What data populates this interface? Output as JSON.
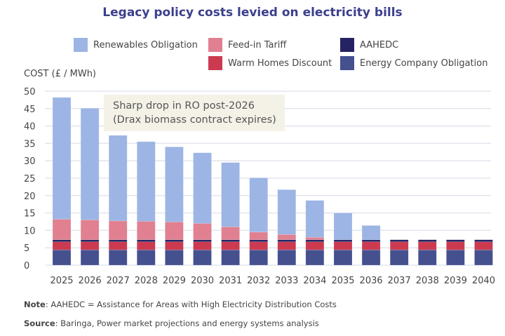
{
  "chart_data": {
    "type": "bar",
    "stacked": true,
    "title": "Legacy policy costs levied on electricity bills",
    "ylabel": "COST (£ / MWh)",
    "xlabel": "",
    "ylim": [
      0,
      50
    ],
    "yticks": [
      0,
      5,
      10,
      15,
      20,
      25,
      30,
      35,
      40,
      45,
      50
    ],
    "grid": true,
    "categories": [
      "2025",
      "2026",
      "2027",
      "2028",
      "2029",
      "2030",
      "2031",
      "2032",
      "2033",
      "2034",
      "2035",
      "2036",
      "2037",
      "2038",
      "2039",
      "2040"
    ],
    "series": [
      {
        "name": "Energy Company Obligation",
        "color": "#45508f",
        "values": [
          4.4,
          4.4,
          4.4,
          4.4,
          4.4,
          4.4,
          4.4,
          4.4,
          4.4,
          4.4,
          4.4,
          4.4,
          4.4,
          4.4,
          4.4,
          4.4
        ]
      },
      {
        "name": "Warm Homes Discount",
        "color": "#cc3a50",
        "values": [
          2.3,
          2.3,
          2.3,
          2.3,
          2.3,
          2.3,
          2.3,
          2.3,
          2.3,
          2.3,
          2.3,
          2.3,
          2.3,
          2.3,
          2.3,
          2.3
        ]
      },
      {
        "name": "AAHEDC",
        "color": "#252363",
        "values": [
          0.6,
          0.6,
          0.6,
          0.6,
          0.6,
          0.6,
          0.6,
          0.6,
          0.6,
          0.6,
          0.6,
          0.6,
          0.6,
          0.6,
          0.6,
          0.6
        ]
      },
      {
        "name": "Feed-in Tariff",
        "color": "#e08090",
        "values": [
          5.9,
          5.7,
          5.4,
          5.3,
          5.1,
          4.7,
          3.7,
          2.2,
          1.5,
          0.7,
          0,
          0,
          0,
          0,
          0,
          0
        ]
      },
      {
        "name": "Renewables Obligation",
        "color": "#9db5e4",
        "values": [
          35.0,
          32.1,
          24.6,
          22.9,
          21.6,
          20.3,
          18.5,
          15.6,
          12.9,
          10.6,
          7.7,
          4.1,
          0,
          0,
          0,
          0
        ]
      }
    ],
    "annotation": [
      "Sharp drop in RO post-2026",
      "(Drax biomass contract expires)"
    ],
    "legend_position": "top"
  },
  "notes": {
    "note_label": "Note",
    "note_text": ": AAHEDC = Assistance for Areas with High Electricity Distribution Costs",
    "source_label": "Source",
    "source_text": ": Baringa, Power market projections and energy systems analysis"
  }
}
